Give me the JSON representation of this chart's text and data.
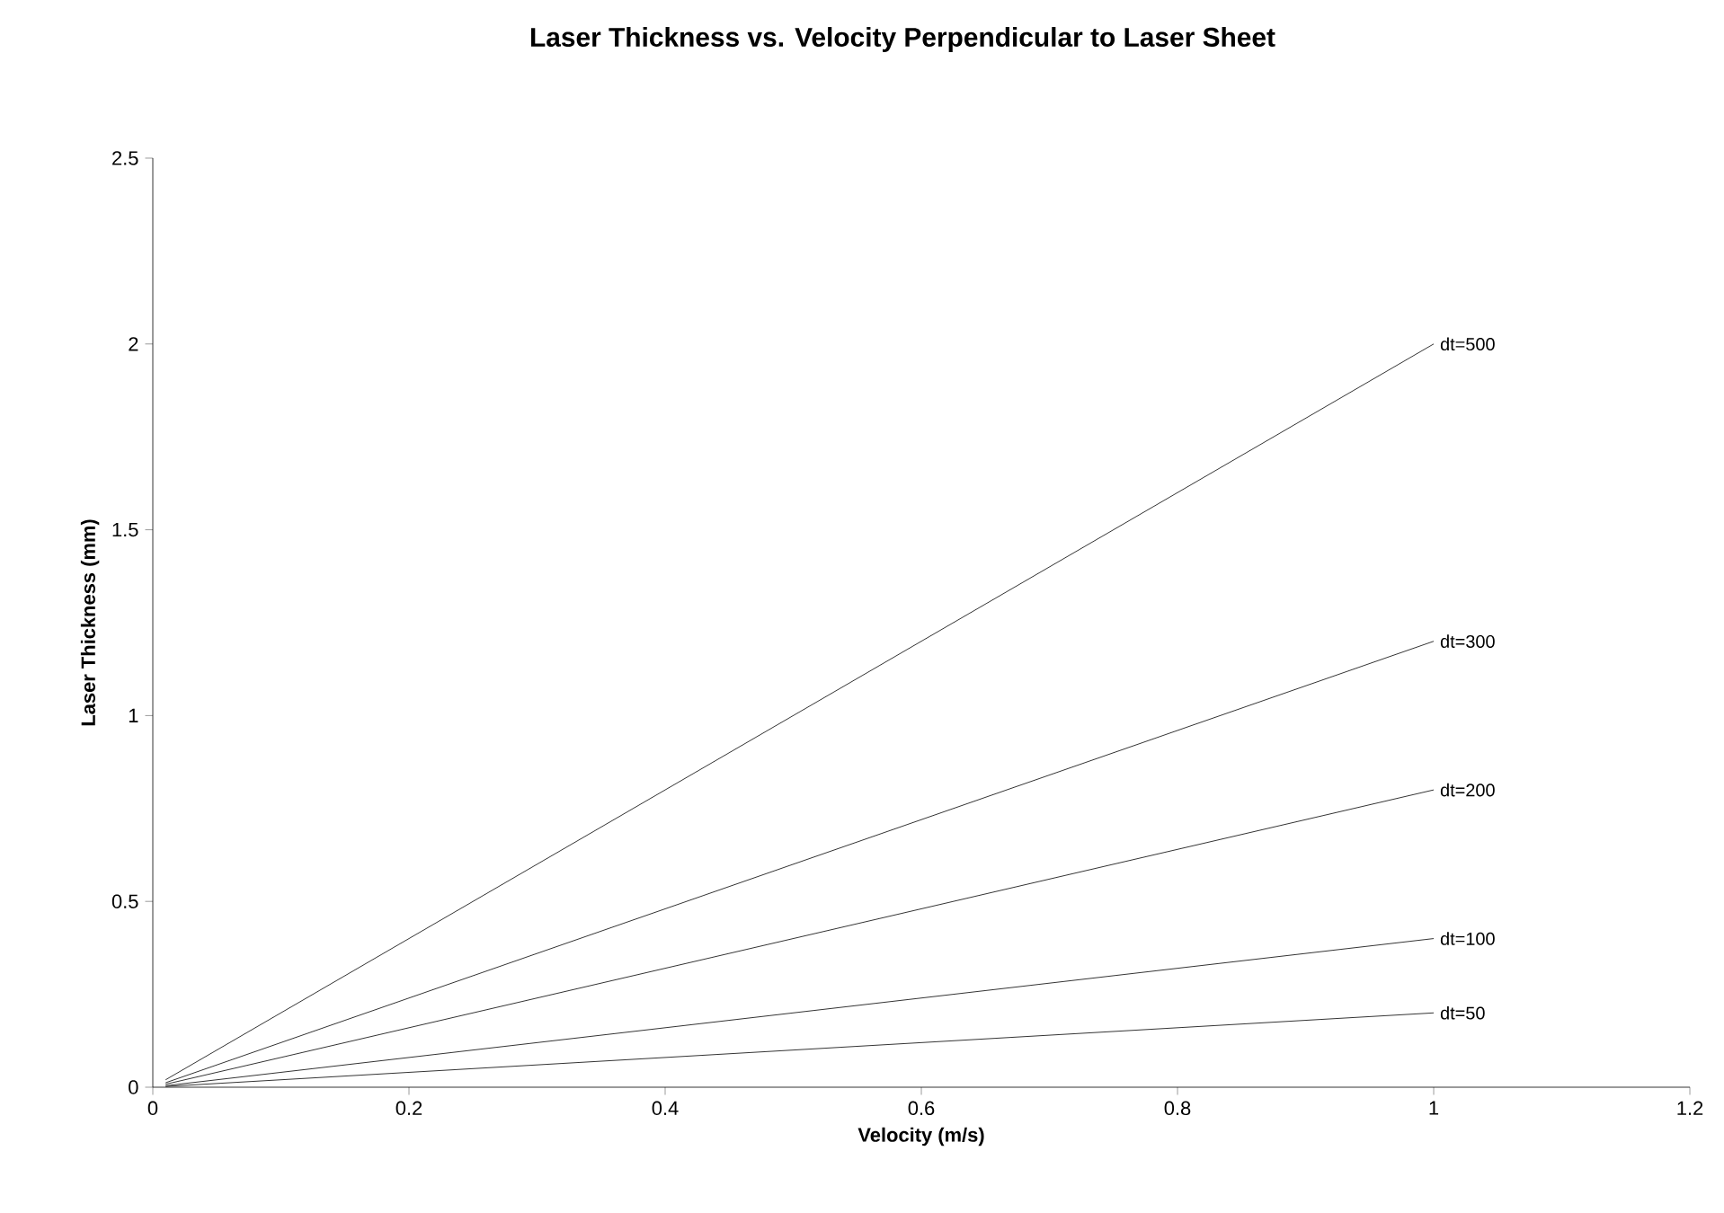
{
  "chart_data": {
    "type": "line",
    "title": "Laser Thickness vs. Velocity Perpendicular to Laser Sheet",
    "xlabel": "Velocity (m/s)",
    "ylabel": "Laser Thickness (mm)",
    "x": [
      0.01,
      1
    ],
    "series": [
      {
        "name": "dt=500",
        "color": "#000000",
        "values": [
          0.02,
          2.0
        ]
      },
      {
        "name": "dt=300",
        "color": "#000000",
        "values": [
          0.012,
          1.2
        ]
      },
      {
        "name": "dt=200",
        "color": "#000000",
        "values": [
          0.008,
          0.8
        ]
      },
      {
        "name": "dt=100",
        "color": "#000000",
        "values": [
          0.004,
          0.4
        ]
      },
      {
        "name": "dt=50",
        "color": "#000000",
        "values": [
          0.002,
          0.2
        ]
      }
    ],
    "xlim": [
      0,
      1.2
    ],
    "xticks": [
      0,
      0.2,
      0.4,
      0.6,
      0.8,
      1,
      1.2
    ],
    "ylim": [
      0,
      2.5
    ],
    "yticks": [
      0,
      0.5,
      1,
      1.5,
      2,
      2.5
    ],
    "grid": false,
    "marker": "none",
    "line_style": "solid"
  }
}
